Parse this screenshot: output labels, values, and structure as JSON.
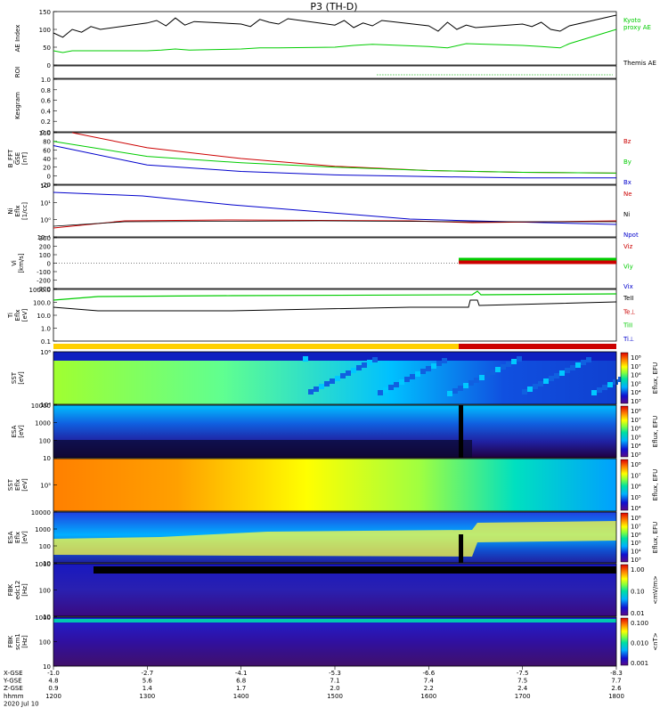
{
  "title": "P3 (TH-D)",
  "date_label": "2020 Jul 10",
  "chart_data": [
    {
      "type": "line",
      "ylabel": "AE Index",
      "ylim": [
        0,
        150
      ],
      "yticks": [
        "0",
        "50",
        "100",
        "150"
      ],
      "legend": [
        {
          "label": "Kyoto\nproxy AE",
          "color": "#00cc00"
        },
        {
          "label": "Themis AE",
          "color": "#000000"
        }
      ],
      "series": [
        {
          "name": "Themis AE",
          "color": "#000000",
          "x": [
            1200,
            1210,
            1220,
            1230,
            1240,
            1250,
            1300,
            1310,
            1320,
            1330,
            1340,
            1350,
            1400,
            1410,
            1420,
            1430,
            1440,
            1450,
            1500,
            1510,
            1520,
            1530,
            1540,
            1550,
            1600,
            1610,
            1620,
            1630,
            1640,
            1650,
            1700,
            1710,
            1720,
            1730,
            1740,
            1750,
            1800
          ],
          "y": [
            90,
            78,
            100,
            92,
            108,
            100,
            118,
            125,
            110,
            132,
            112,
            122,
            115,
            108,
            128,
            120,
            115,
            130,
            112,
            125,
            105,
            118,
            110,
            125,
            110,
            95,
            120,
            100,
            112,
            105,
            115,
            108,
            120,
            100,
            95,
            110,
            140
          ]
        },
        {
          "name": "Kyoto proxy AE",
          "color": "#00cc00",
          "x": [
            1200,
            1210,
            1220,
            1300,
            1315,
            1330,
            1345,
            1400,
            1420,
            1440,
            1500,
            1520,
            1540,
            1600,
            1620,
            1640,
            1700,
            1720,
            1740,
            1750,
            1800
          ],
          "y": [
            40,
            35,
            40,
            40,
            42,
            45,
            42,
            45,
            48,
            48,
            50,
            55,
            58,
            52,
            48,
            60,
            55,
            52,
            48,
            60,
            100
          ]
        }
      ]
    },
    {
      "type": "line",
      "ylabel": "ROI",
      "annotation": "dotted green line"
    },
    {
      "type": "line",
      "ylabel": "Kesgram",
      "ylim": [
        0,
        1.0
      ],
      "yticks": [
        "0.0",
        "0.2",
        "0.4",
        "0.6",
        "0.8",
        "1.0"
      ]
    },
    {
      "type": "line",
      "ylabel": "B_FFT\nGSE\n[nT]",
      "ylim": [
        -20,
        100
      ],
      "yticks": [
        "-20",
        "0",
        "20",
        "40",
        "60",
        "80",
        "100"
      ],
      "legend": [
        {
          "label": "Bz",
          "color": "#cc0000"
        },
        {
          "label": "By",
          "color": "#00cc00"
        },
        {
          "label": "Bx",
          "color": "#0000cc"
        }
      ],
      "series": [
        {
          "name": "Bz",
          "color": "#cc0000",
          "x": [
            1220,
            1300,
            1400,
            1500,
            1600,
            1700,
            1800
          ],
          "y": [
            100,
            65,
            40,
            22,
            12,
            8,
            6
          ]
        },
        {
          "name": "By",
          "color": "#00cc00",
          "x": [
            1200,
            1300,
            1400,
            1500,
            1600,
            1700,
            1800
          ],
          "y": [
            80,
            45,
            30,
            20,
            12,
            8,
            6
          ]
        },
        {
          "name": "Bx",
          "color": "#0000cc",
          "x": [
            1200,
            1300,
            1400,
            1500,
            1600,
            1700,
            1800
          ],
          "y": [
            70,
            25,
            10,
            2,
            -2,
            -5,
            -5
          ]
        }
      ]
    },
    {
      "type": "line",
      "ylabel": "Ni\nEflx\n[1/cc]",
      "yticks": [
        "10⁻¹",
        "10⁰",
        "10¹",
        "10²"
      ],
      "legend": [
        {
          "label": "Ne",
          "color": "#cc0000"
        },
        {
          "label": "Ni",
          "color": "#000000"
        },
        {
          "label": "Npot",
          "color": "#0000cc"
        }
      ]
    },
    {
      "type": "line",
      "ylabel": "Vi\n[km/s]",
      "ylim": [
        -300,
        300
      ],
      "yticks": [
        "-300",
        "-200",
        "-100",
        "0",
        "100",
        "200",
        "300"
      ],
      "legend": [
        {
          "label": "Viz",
          "color": "#cc0000"
        },
        {
          "label": "Viy",
          "color": "#00cc00"
        },
        {
          "label": "Vix",
          "color": "#0000cc"
        }
      ]
    },
    {
      "type": "line",
      "ylabel": "Ti\nEflx\n[eV]",
      "yticks": [
        "0.1",
        "1.0",
        "10.0",
        "100.0",
        "1000.0"
      ],
      "legend": [
        {
          "label": "TeII",
          "color": "#000000"
        },
        {
          "label": "Te⊥",
          "color": "#cc0000"
        },
        {
          "label": "TiII",
          "color": "#00cc00"
        },
        {
          "label": "Ti⊥",
          "color": "#0000cc"
        }
      ]
    },
    {
      "type": "heatmap",
      "ylabel": "SST\n[eV]",
      "yticks": [
        "10⁴",
        "10⁶"
      ],
      "colorbar_label": "Eflux, EFU",
      "colorbar_ticks": [
        "10⁸",
        "10⁷",
        "10⁶",
        "10⁵",
        "10⁴",
        "10³"
      ]
    },
    {
      "type": "heatmap",
      "ylabel": "ESA\n[eV]",
      "yticks": [
        "10",
        "100",
        "1000",
        "10000"
      ],
      "colorbar_label": "Eflux, EFU",
      "colorbar_ticks": [
        "10⁸",
        "10⁷",
        "10⁶",
        "10⁵",
        "10⁴",
        "10³"
      ]
    },
    {
      "type": "heatmap",
      "ylabel": "SST\nEflx\n[eV]",
      "yticks": [
        "10⁵"
      ],
      "colorbar_label": "Eflux, EFU",
      "colorbar_ticks": [
        "10⁸",
        "10⁷",
        "10⁶",
        "10⁵",
        "10⁴"
      ]
    },
    {
      "type": "heatmap",
      "ylabel": "ESA\nEflx\n[eV]",
      "yticks": [
        "10",
        "100",
        "1000",
        "10000"
      ],
      "colorbar_label": "Eflux, EFU",
      "colorbar_ticks": [
        "10⁸",
        "10⁷",
        "10⁶",
        "10⁵",
        "10⁴",
        "10³"
      ]
    },
    {
      "type": "heatmap",
      "ylabel": "FBK\nedc12\n[Hz]",
      "yticks": [
        "10",
        "100",
        "1000"
      ],
      "colorbar_label": "<mV/m>",
      "colorbar_ticks": [
        "1.00",
        "0.10",
        "0.01"
      ]
    },
    {
      "type": "heatmap",
      "ylabel": "FBK\nscm1\n[Hz]",
      "yticks": [
        "10",
        "100",
        "1000"
      ],
      "colorbar_label": "<nT>",
      "colorbar_ticks": [
        "0.100",
        "0.010",
        "0.001"
      ]
    }
  ],
  "xaxis": {
    "row_labels": [
      "X-GSE",
      "Y-GSE",
      "Z-GSE",
      "hhmm",
      "2020 Jul 10"
    ],
    "columns": [
      {
        "x": 1200,
        "vals": [
          "-1.0",
          "4.8",
          "0.9",
          "1200"
        ]
      },
      {
        "x": 1300,
        "vals": [
          "-2.7",
          "5.6",
          "1.4",
          "1300"
        ]
      },
      {
        "x": 1400,
        "vals": [
          "-4.1",
          "6.8",
          "1.7",
          "1400"
        ]
      },
      {
        "x": 1500,
        "vals": [
          "-5.3",
          "7.1",
          "2.0",
          "1500"
        ]
      },
      {
        "x": 1600,
        "vals": [
          "-6.6",
          "7.4",
          "2.2",
          "1600"
        ]
      },
      {
        "x": 1700,
        "vals": [
          "-7.5",
          "7.5",
          "2.4",
          "1700"
        ]
      },
      {
        "x": 1800,
        "vals": [
          "-8.3",
          "7.7",
          "2.6",
          "1800"
        ]
      }
    ]
  },
  "status_bar": {
    "colors": [
      "#ffd000",
      "#cc0000"
    ],
    "switch_x": 1632
  }
}
